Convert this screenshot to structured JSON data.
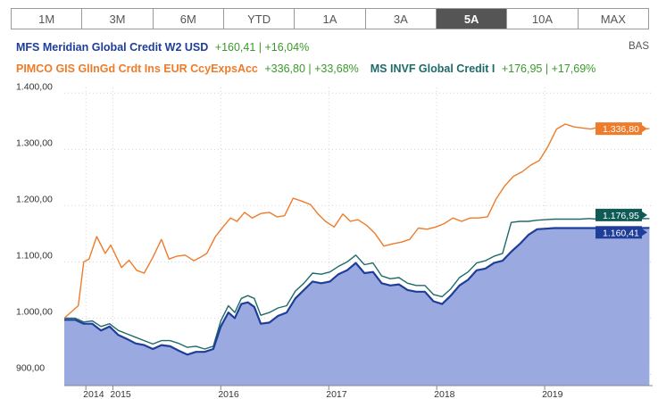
{
  "tabs": [
    {
      "label": "1M",
      "active": false
    },
    {
      "label": "3M",
      "active": false
    },
    {
      "label": "6M",
      "active": false
    },
    {
      "label": "YTD",
      "active": false
    },
    {
      "label": "1A",
      "active": false
    },
    {
      "label": "3A",
      "active": false
    },
    {
      "label": "5A",
      "active": true
    },
    {
      "label": "10A",
      "active": false
    },
    {
      "label": "MAX",
      "active": false
    }
  ],
  "scale_label": "BAS",
  "colors": {
    "mfs": "#1f3e9a",
    "pimco": "#ee7c2a",
    "ms": "#1d6b6a",
    "gain": "#3a9a2a",
    "area": "#9aaae0"
  },
  "chart_data": {
    "type": "line",
    "ylim": [
      880,
      1410
    ],
    "xlim": [
      2014.3,
      2019.75
    ],
    "yticks": [
      {
        "value": 1400,
        "label": "1.400,00"
      },
      {
        "value": 1300,
        "label": "1.300,00"
      },
      {
        "value": 1200,
        "label": "1.200,00"
      },
      {
        "value": 1100,
        "label": "1.100,00"
      },
      {
        "value": 1000,
        "label": "1.000,00"
      },
      {
        "value": 900,
        "label": "900,00"
      }
    ],
    "xticks": [
      {
        "value": 2014.5,
        "label": "2014"
      },
      {
        "value": 2014.75,
        "label": "2015"
      },
      {
        "value": 2015.75,
        "label": "2016"
      },
      {
        "value": 2016.75,
        "label": "2017"
      },
      {
        "value": 2017.75,
        "label": "2018"
      },
      {
        "value": 2018.75,
        "label": "2019"
      }
    ],
    "series": [
      {
        "key": "pimco",
        "name": "PIMCO GIS GlInGd Crdt Ins EUR CcyExpsAcc",
        "summary": "+336,80 | +33,68%",
        "last_label": "1.336,80",
        "last_value": 1336.8,
        "x": [
          2014.3,
          2014.43,
          2014.48,
          2014.53,
          2014.6,
          2014.68,
          2014.73,
          2014.83,
          2014.9,
          2014.97,
          2015.04,
          2015.12,
          2015.2,
          2015.27,
          2015.34,
          2015.42,
          2015.5,
          2015.56,
          2015.62,
          2015.7,
          2015.77,
          2015.84,
          2015.9,
          2015.97,
          2016.04,
          2016.12,
          2016.2,
          2016.27,
          2016.34,
          2016.42,
          2016.5,
          2016.58,
          2016.65,
          2016.72,
          2016.8,
          2016.88,
          2016.95,
          2017.02,
          2017.1,
          2017.18,
          2017.26,
          2017.34,
          2017.42,
          2017.5,
          2017.58,
          2017.66,
          2017.74,
          2017.82,
          2017.9,
          2017.98,
          2018.06,
          2018.14,
          2018.22,
          2018.3,
          2018.38,
          2018.46,
          2018.54,
          2018.62,
          2018.7,
          2018.78,
          2018.86,
          2018.94,
          2019.02,
          2019.1,
          2019.18,
          2019.26,
          2019.34,
          2019.42,
          2019.5,
          2019.58,
          2019.65,
          2019.72
        ],
        "values": [
          1000,
          1022,
          1100,
          1105,
          1145,
          1115,
          1130,
          1090,
          1103,
          1085,
          1080,
          1108,
          1140,
          1105,
          1110,
          1112,
          1102,
          1108,
          1115,
          1145,
          1162,
          1178,
          1172,
          1188,
          1178,
          1186,
          1188,
          1180,
          1182,
          1213,
          1208,
          1202,
          1185,
          1172,
          1162,
          1185,
          1172,
          1175,
          1165,
          1150,
          1128,
          1132,
          1135,
          1140,
          1160,
          1158,
          1162,
          1168,
          1178,
          1172,
          1178,
          1178,
          1180,
          1212,
          1235,
          1252,
          1260,
          1272,
          1280,
          1305,
          1336,
          1345,
          1340,
          1338,
          1336,
          1340,
          1338,
          1336,
          1336,
          1336,
          1336,
          1336.8
        ],
        "visible_n": 63
      },
      {
        "key": "ms",
        "name": "MS INVF Global Credit I",
        "summary": "+176,95 | +17,69%",
        "last_label": "1.176,95",
        "last_value": 1176.95,
        "x": [
          2014.3,
          2014.4,
          2014.48,
          2014.56,
          2014.64,
          2014.72,
          2014.8,
          2014.88,
          2014.96,
          2015.04,
          2015.12,
          2015.2,
          2015.28,
          2015.36,
          2015.44,
          2015.52,
          2015.6,
          2015.68,
          2015.75,
          2015.82,
          2015.88,
          2015.94,
          2016.0,
          2016.06,
          2016.12,
          2016.2,
          2016.28,
          2016.36,
          2016.44,
          2016.52,
          2016.6,
          2016.68,
          2016.76,
          2016.84,
          2016.92,
          2017.0,
          2017.08,
          2017.16,
          2017.24,
          2017.32,
          2017.4,
          2017.48,
          2017.56,
          2017.64,
          2017.72,
          2017.8,
          2017.88,
          2017.96,
          2018.04,
          2018.12,
          2018.2,
          2018.28,
          2018.36,
          2018.44,
          2018.52,
          2018.6,
          2018.68,
          2018.76,
          2018.84,
          2018.92,
          2019.0,
          2019.08,
          2019.16,
          2019.24,
          2019.32,
          2019.4,
          2019.48,
          2019.56,
          2019.64,
          2019.72
        ],
        "values": [
          1000,
          1000,
          993,
          995,
          985,
          990,
          978,
          972,
          966,
          960,
          954,
          960,
          960,
          955,
          948,
          950,
          945,
          950,
          995,
          1022,
          1010,
          1035,
          1040,
          1035,
          1005,
          1010,
          1018,
          1022,
          1048,
          1062,
          1080,
          1078,
          1082,
          1092,
          1100,
          1112,
          1095,
          1098,
          1075,
          1070,
          1072,
          1062,
          1058,
          1058,
          1042,
          1038,
          1052,
          1072,
          1082,
          1098,
          1102,
          1110,
          1115,
          1170,
          1172,
          1172,
          1174,
          1175,
          1176,
          1176,
          1176,
          1176,
          1177,
          1176,
          1177,
          1176,
          1177,
          1176,
          1177,
          1176.95
        ],
        "visible_n": 62
      },
      {
        "key": "mfs",
        "name": "MFS Meridian Global Credit W2 USD",
        "summary": "+160,41 | +16,04%",
        "last_label": "1.160,41",
        "last_value": 1160.41,
        "x": [
          2014.3,
          2014.4,
          2014.48,
          2014.56,
          2014.64,
          2014.72,
          2014.8,
          2014.88,
          2014.96,
          2015.04,
          2015.12,
          2015.2,
          2015.28,
          2015.36,
          2015.44,
          2015.52,
          2015.6,
          2015.68,
          2015.75,
          2015.82,
          2015.88,
          2015.94,
          2016.0,
          2016.06,
          2016.12,
          2016.2,
          2016.28,
          2016.36,
          2016.44,
          2016.52,
          2016.6,
          2016.68,
          2016.76,
          2016.84,
          2016.92,
          2017.0,
          2017.08,
          2017.16,
          2017.24,
          2017.32,
          2017.4,
          2017.48,
          2017.56,
          2017.64,
          2017.72,
          2017.8,
          2017.88,
          2017.96,
          2018.04,
          2018.12,
          2018.2,
          2018.28,
          2018.36,
          2018.44,
          2018.52,
          2018.6,
          2018.68,
          2018.76,
          2018.84,
          2018.92,
          2019.0,
          2019.08,
          2019.16,
          2019.24,
          2019.32,
          2019.4,
          2019.48,
          2019.56,
          2019.64,
          2019.72
        ],
        "values": [
          997,
          997,
          990,
          990,
          978,
          985,
          970,
          963,
          955,
          952,
          945,
          952,
          950,
          942,
          935,
          940,
          940,
          945,
          985,
          1010,
          1000,
          1025,
          1028,
          1020,
          990,
          992,
          1004,
          1010,
          1035,
          1050,
          1065,
          1062,
          1065,
          1078,
          1085,
          1098,
          1080,
          1082,
          1062,
          1058,
          1060,
          1050,
          1047,
          1047,
          1030,
          1025,
          1040,
          1058,
          1068,
          1085,
          1088,
          1098,
          1102,
          1118,
          1132,
          1148,
          1158,
          1159,
          1160,
          1160,
          1160,
          1160,
          1160,
          1160,
          1160,
          1160,
          1160,
          1160,
          1160,
          1160.41
        ],
        "visible_n": 62
      }
    ]
  }
}
